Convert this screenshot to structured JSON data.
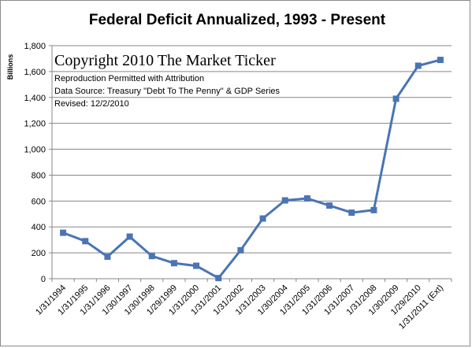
{
  "chart_data": {
    "type": "line",
    "title": "Federal Deficit Annualized, 1993 - Present",
    "ylabel": "Billions",
    "xlabel": "",
    "ylim": [
      0,
      1800
    ],
    "ytick_step": 200,
    "ytick_labels": [
      "0",
      "200",
      "400",
      "600",
      "800",
      "1,000",
      "1,200",
      "1,400",
      "1,600",
      "1,800"
    ],
    "grid": true,
    "legend": "none",
    "categories": [
      "1/31/1994",
      "1/31/1995",
      "1/31/1996",
      "1/30/1997",
      "1/30/1998",
      "1/29/1999",
      "1/31/2000",
      "1/31/2001",
      "1/31/2002",
      "1/31/2003",
      "1/30/2004",
      "1/31/2005",
      "1/31/2006",
      "1/31/2007",
      "1/31/2008",
      "1/30/2009",
      "1/29/2010",
      "1/31/2011 (Ext)"
    ],
    "series": [
      {
        "values": [
          355,
          290,
          170,
          325,
          175,
          120,
          100,
          5,
          220,
          465,
          605,
          620,
          565,
          510,
          530,
          1390,
          1645,
          1690
        ],
        "color": "#4a74b4"
      }
    ],
    "annotations": [
      "Copyright 2010 The Market Ticker",
      "Reproduction Permitted with Attribution",
      "Data Source:  Treasury \"Debt To The Penny\" & GDP Series",
      "Revised: 12/2/2010"
    ]
  }
}
